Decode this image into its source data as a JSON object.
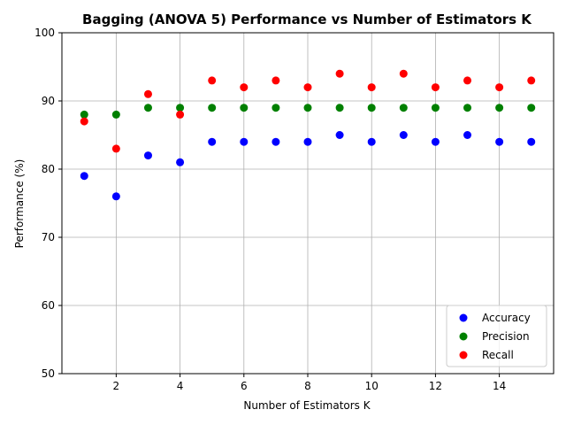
{
  "chart_data": {
    "type": "scatter",
    "title": "Bagging (ANOVA 5) Performance vs Number of Estimators K",
    "xlabel": "Number of Estimators K",
    "ylabel": "Performance (%)",
    "xlim": [
      0.3,
      15.7
    ],
    "ylim": [
      50,
      100
    ],
    "xticks": [
      2,
      4,
      6,
      8,
      10,
      12,
      14
    ],
    "yticks": [
      50,
      60,
      70,
      80,
      90,
      100
    ],
    "grid": true,
    "legend_position": "lower-right",
    "x": [
      1,
      2,
      3,
      4,
      5,
      6,
      7,
      8,
      9,
      10,
      11,
      12,
      13,
      14,
      15
    ],
    "series": [
      {
        "name": "Accuracy",
        "color": "#0000ff",
        "values": [
          79,
          76,
          82,
          81,
          84,
          84,
          84,
          84,
          85,
          84,
          85,
          84,
          85,
          84,
          84
        ]
      },
      {
        "name": "Precision",
        "color": "#008000",
        "values": [
          88,
          88,
          89,
          89,
          89,
          89,
          89,
          89,
          89,
          89,
          89,
          89,
          89,
          89,
          89
        ]
      },
      {
        "name": "Recall",
        "color": "#ff0000",
        "values": [
          87,
          83,
          91,
          88,
          93,
          92,
          93,
          92,
          94,
          92,
          94,
          92,
          93,
          92,
          93
        ]
      }
    ]
  }
}
